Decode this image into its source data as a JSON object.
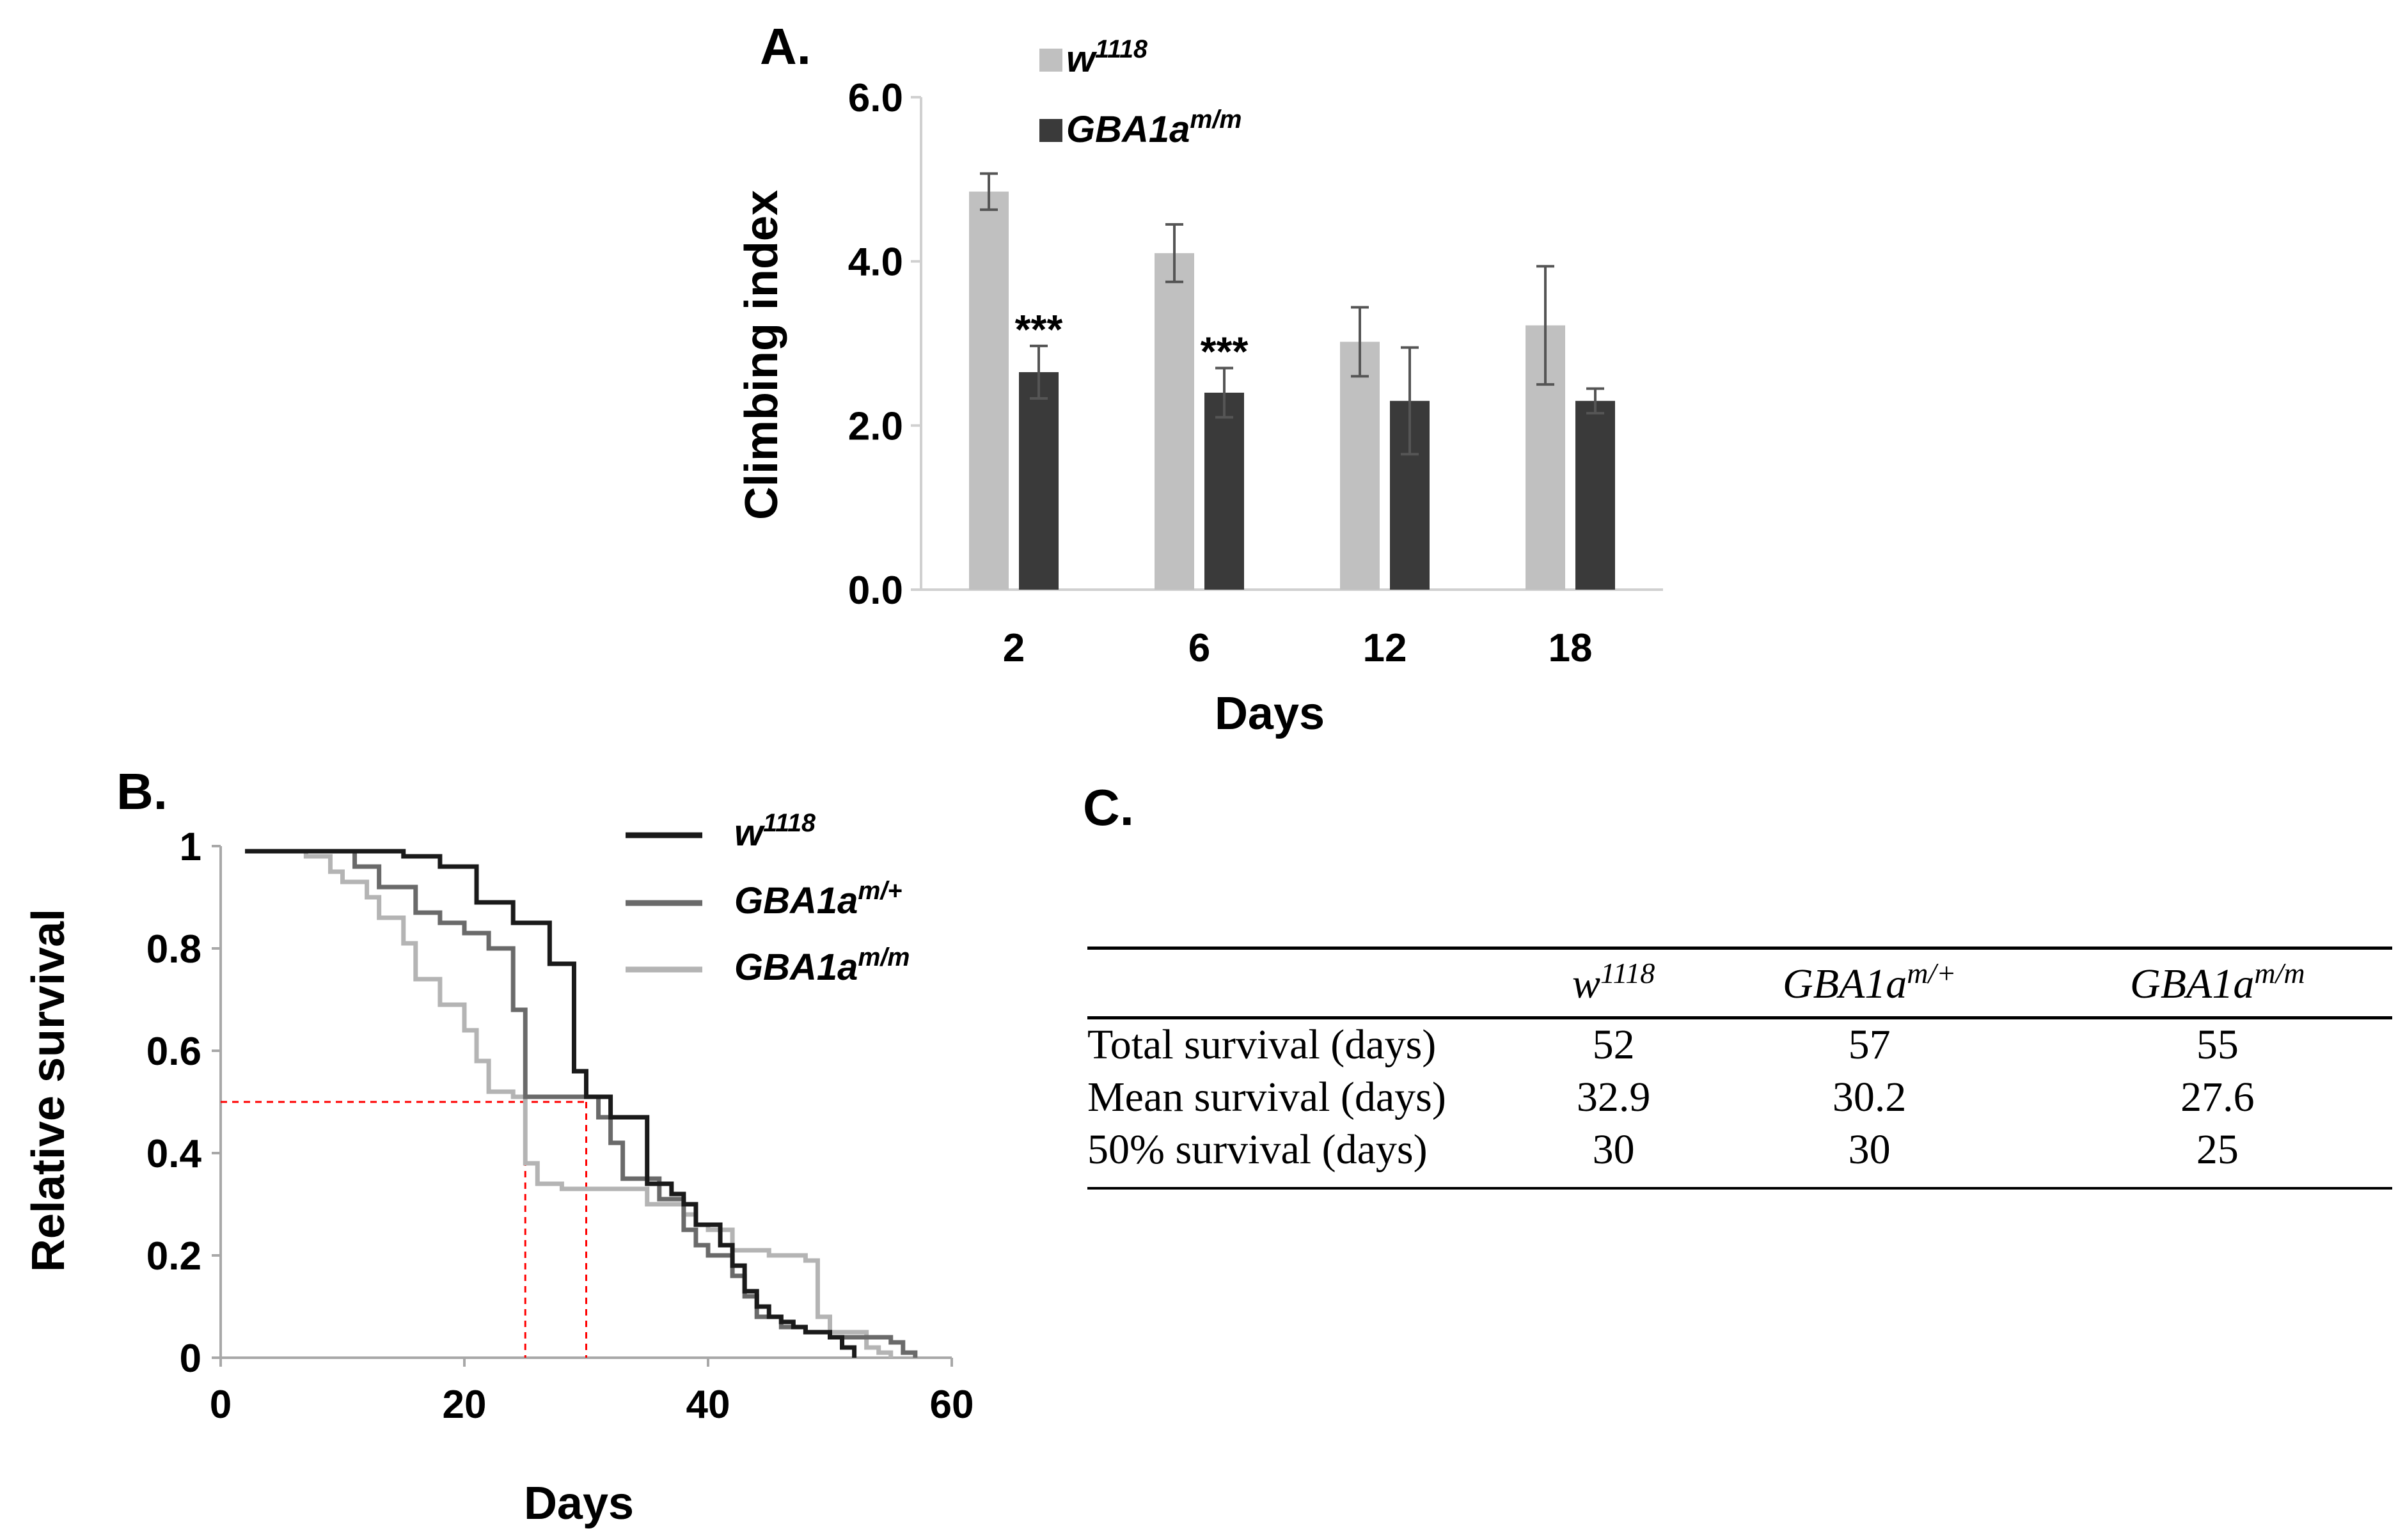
{
  "chart_data": [
    {
      "panel": "A.",
      "type": "bar",
      "xlabel": "Days",
      "ylabel": "Climbing index",
      "ylim": [
        0,
        6
      ],
      "yticks": [
        "0.0",
        "2.0",
        "4.0",
        "6.0"
      ],
      "categories": [
        "2",
        "6",
        "12",
        "18"
      ],
      "series": [
        {
          "name": "w",
          "name_sup": "1118",
          "color": "#c0c0c0",
          "values": [
            4.85,
            4.1,
            3.02,
            3.22
          ],
          "errors": [
            0.22,
            0.35,
            0.42,
            0.72
          ]
        },
        {
          "name": "GBA1a",
          "name_sup": "m/m",
          "color": "#3a3a3a",
          "values": [
            2.65,
            2.4,
            2.3,
            2.3
          ],
          "errors": [
            0.32,
            0.3,
            0.65,
            0.15
          ]
        }
      ],
      "annotations": [
        {
          "category": "2",
          "text": "***"
        },
        {
          "category": "6",
          "text": "***"
        }
      ]
    },
    {
      "panel": "B.",
      "type": "line",
      "xlabel": "Days",
      "ylabel": "Relative survival",
      "xlim": [
        0,
        60
      ],
      "ylim": [
        0,
        1
      ],
      "xticks": [
        "0",
        "20",
        "40",
        "60"
      ],
      "yticks": [
        "0",
        "0.2",
        "0.4",
        "0.6",
        "0.8",
        "1"
      ],
      "reference_lines": {
        "y": 0.5,
        "x": [
          25,
          30
        ],
        "color": "#ff0000"
      },
      "series": [
        {
          "name": "w",
          "name_sup": "1118",
          "color": "#1a1a1a",
          "x": [
            2,
            13,
            15,
            18,
            21,
            24,
            27,
            29,
            30,
            32,
            35,
            37,
            38,
            39,
            41,
            42,
            43,
            44,
            45,
            46,
            47,
            48,
            50,
            51,
            52
          ],
          "y": [
            0.99,
            0.99,
            0.98,
            0.96,
            0.89,
            0.85,
            0.77,
            0.56,
            0.51,
            0.47,
            0.34,
            0.32,
            0.3,
            0.26,
            0.22,
            0.18,
            0.13,
            0.1,
            0.08,
            0.07,
            0.06,
            0.05,
            0.04,
            0.02,
            0.0
          ]
        },
        {
          "name": "GBA1a",
          "name_sup": "m/+",
          "color": "#6a6a6a",
          "x": [
            2,
            8,
            11,
            13,
            16,
            18,
            20,
            22,
            24,
            25,
            31,
            32,
            33,
            36,
            38,
            39,
            40,
            42,
            43,
            44,
            46,
            48,
            50,
            55,
            56,
            57
          ],
          "y": [
            0.99,
            0.99,
            0.96,
            0.92,
            0.87,
            0.85,
            0.83,
            0.8,
            0.68,
            0.51,
            0.47,
            0.42,
            0.35,
            0.31,
            0.25,
            0.22,
            0.2,
            0.16,
            0.12,
            0.08,
            0.06,
            0.05,
            0.04,
            0.03,
            0.01,
            0.0
          ]
        },
        {
          "name": "GBA1a",
          "name_sup": "m/m",
          "color": "#b4b4b4",
          "x": [
            2,
            7,
            9,
            10,
            12,
            13,
            15,
            16,
            18,
            20,
            21,
            22,
            24,
            25,
            26,
            28,
            35,
            38,
            39,
            40,
            42,
            45,
            48,
            49,
            50,
            53,
            54,
            55
          ],
          "y": [
            0.99,
            0.98,
            0.95,
            0.93,
            0.9,
            0.86,
            0.81,
            0.74,
            0.69,
            0.64,
            0.58,
            0.52,
            0.51,
            0.38,
            0.34,
            0.33,
            0.3,
            0.28,
            0.26,
            0.25,
            0.21,
            0.2,
            0.19,
            0.08,
            0.05,
            0.02,
            0.01,
            0.0
          ]
        }
      ]
    },
    {
      "panel": "C.",
      "type": "table",
      "columns": [
        {
          "base": "w",
          "sup": "1118"
        },
        {
          "base": "GBA1a",
          "sup": "m/+"
        },
        {
          "base": "GBA1a",
          "sup": "m/m"
        }
      ],
      "rows": [
        {
          "label": "Total survival (days)",
          "values": [
            "52",
            "57",
            "55"
          ]
        },
        {
          "label": "Mean survival (days)",
          "values": [
            "32.9",
            "30.2",
            "27.6"
          ]
        },
        {
          "label": "50% survival (days)",
          "values": [
            "30",
            "30",
            "25"
          ]
        }
      ]
    }
  ]
}
